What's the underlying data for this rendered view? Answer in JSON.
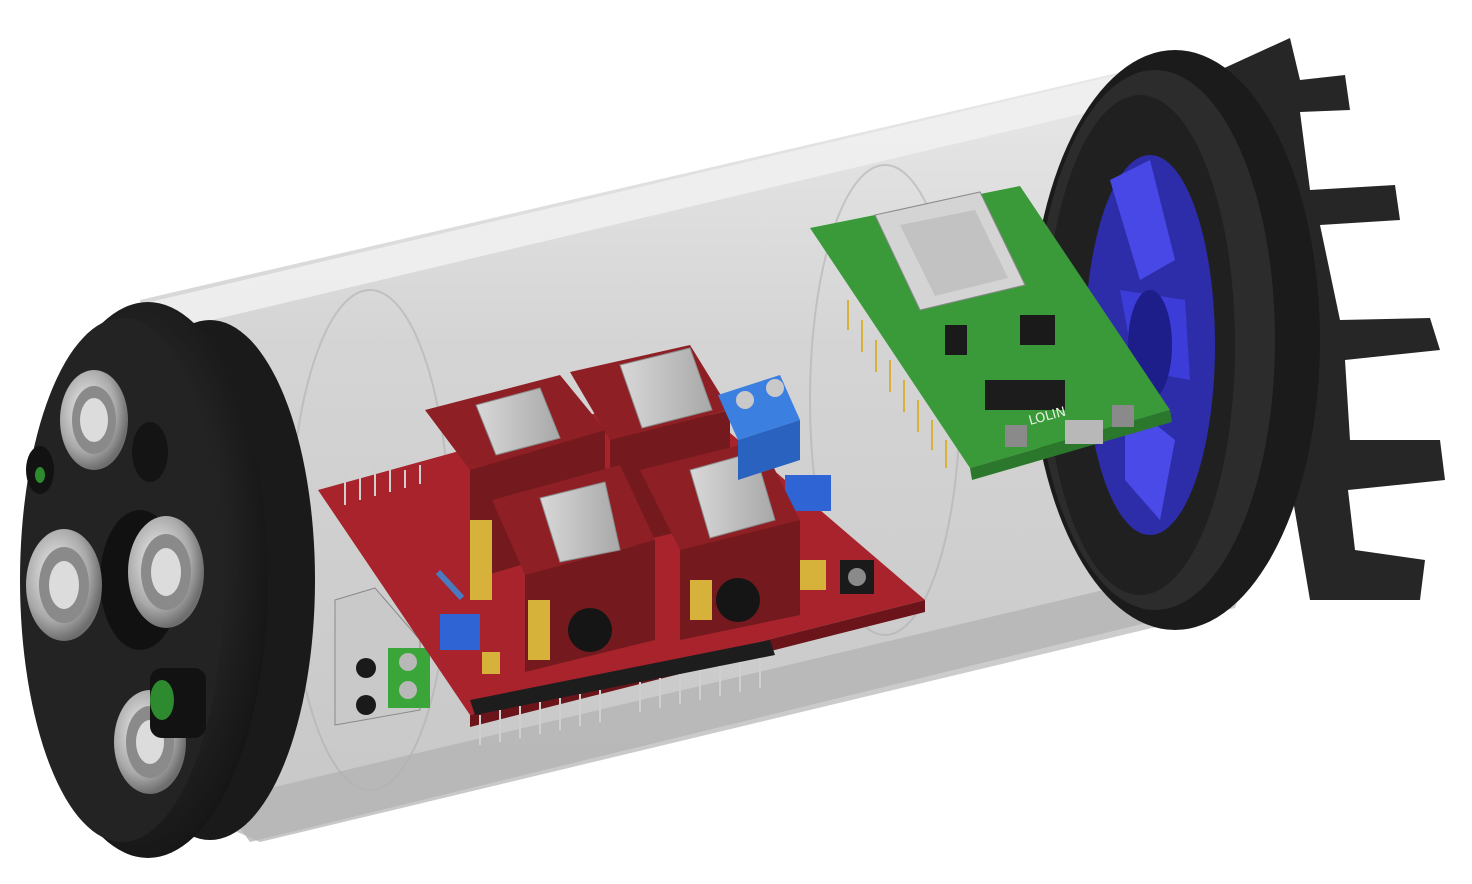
{
  "scene": {
    "description_name": "enclosure-render",
    "colors": {
      "background": "#ffffff",
      "tube": "#c9c9c9",
      "cap": "#1e1e1e",
      "cnc_board": "#a8232c",
      "stepper_driver": "#8e1f24",
      "esp_board": "#3a9a3a",
      "fan_blade": "#3a3ad8",
      "terminal_block": "#2f6fd6",
      "connector_metal": "#b8b8b8",
      "gold": "#d6b23a"
    }
  },
  "esp_board": {
    "silkscreen": "LOLIN"
  }
}
